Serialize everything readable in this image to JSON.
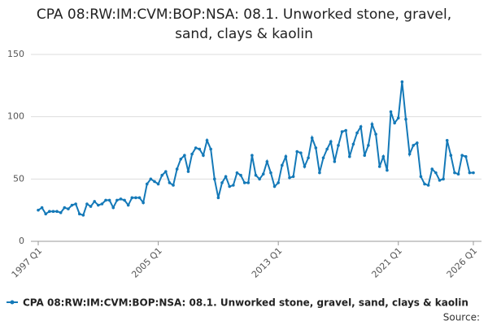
{
  "chart_data": {
    "type": "line",
    "title": "CPA 08:RW:IM:CVM:BOP:NSA: 08.1. Unworked stone, gravel, sand, clays & kaolin",
    "categories": [
      "1997 Q1",
      null,
      null,
      null,
      null,
      null,
      null,
      null,
      null,
      null,
      null,
      null,
      null,
      null,
      null,
      null,
      null,
      null,
      null,
      null,
      null,
      null,
      null,
      null,
      null,
      null,
      null,
      null,
      null,
      null,
      null,
      null,
      "2005 Q1",
      null,
      null,
      null,
      null,
      null,
      null,
      null,
      null,
      null,
      null,
      null,
      null,
      null,
      null,
      null,
      null,
      null,
      null,
      null,
      null,
      null,
      null,
      null,
      null,
      null,
      null,
      null,
      null,
      null,
      null,
      null,
      "2013 Q1",
      null,
      null,
      null,
      null,
      null,
      null,
      null,
      null,
      null,
      null,
      null,
      null,
      null,
      null,
      null,
      null,
      null,
      null,
      null,
      null,
      null,
      null,
      null,
      null,
      null,
      null,
      null,
      null,
      null,
      null,
      null,
      "2021 Q1",
      null,
      null,
      null,
      null,
      null,
      null,
      null,
      null,
      null,
      null,
      null,
      null,
      null,
      null,
      null,
      null,
      null,
      null,
      null,
      "2026 Q1"
    ],
    "series": [
      {
        "name": "CPA 08:RW:IM:CVM:BOP:NSA: 08.1. Unworked stone, gravel, sand, clays & kaolin",
        "color": "#1479b8",
        "values": [
          25,
          27,
          22,
          24,
          24,
          24,
          23,
          27,
          26,
          29,
          30,
          22,
          21,
          30,
          28,
          32,
          29,
          30,
          33,
          33,
          27,
          33,
          34,
          33,
          29,
          35,
          35,
          35,
          31,
          46,
          50,
          48,
          46,
          53,
          56,
          47,
          45,
          58,
          66,
          69,
          56,
          70,
          75,
          74,
          69,
          81,
          74,
          50,
          35,
          47,
          52,
          44,
          45,
          55,
          53,
          47,
          47,
          69,
          53,
          50,
          54,
          64,
          55,
          44,
          47,
          61,
          68,
          51,
          52,
          72,
          71,
          60,
          67,
          83,
          75,
          55,
          67,
          74,
          80,
          64,
          77,
          88,
          89,
          68,
          78,
          87,
          92,
          69,
          77,
          94,
          86,
          60,
          68,
          57,
          104,
          95,
          99,
          128,
          98,
          70,
          77,
          79,
          52,
          46,
          45,
          58,
          55,
          49,
          50,
          81,
          69,
          55,
          54,
          69,
          68,
          55,
          55
        ]
      }
    ],
    "ylim": [
      0,
      150
    ],
    "yticks": [
      0,
      50,
      100,
      150
    ],
    "grid": true,
    "source": "Source:"
  }
}
